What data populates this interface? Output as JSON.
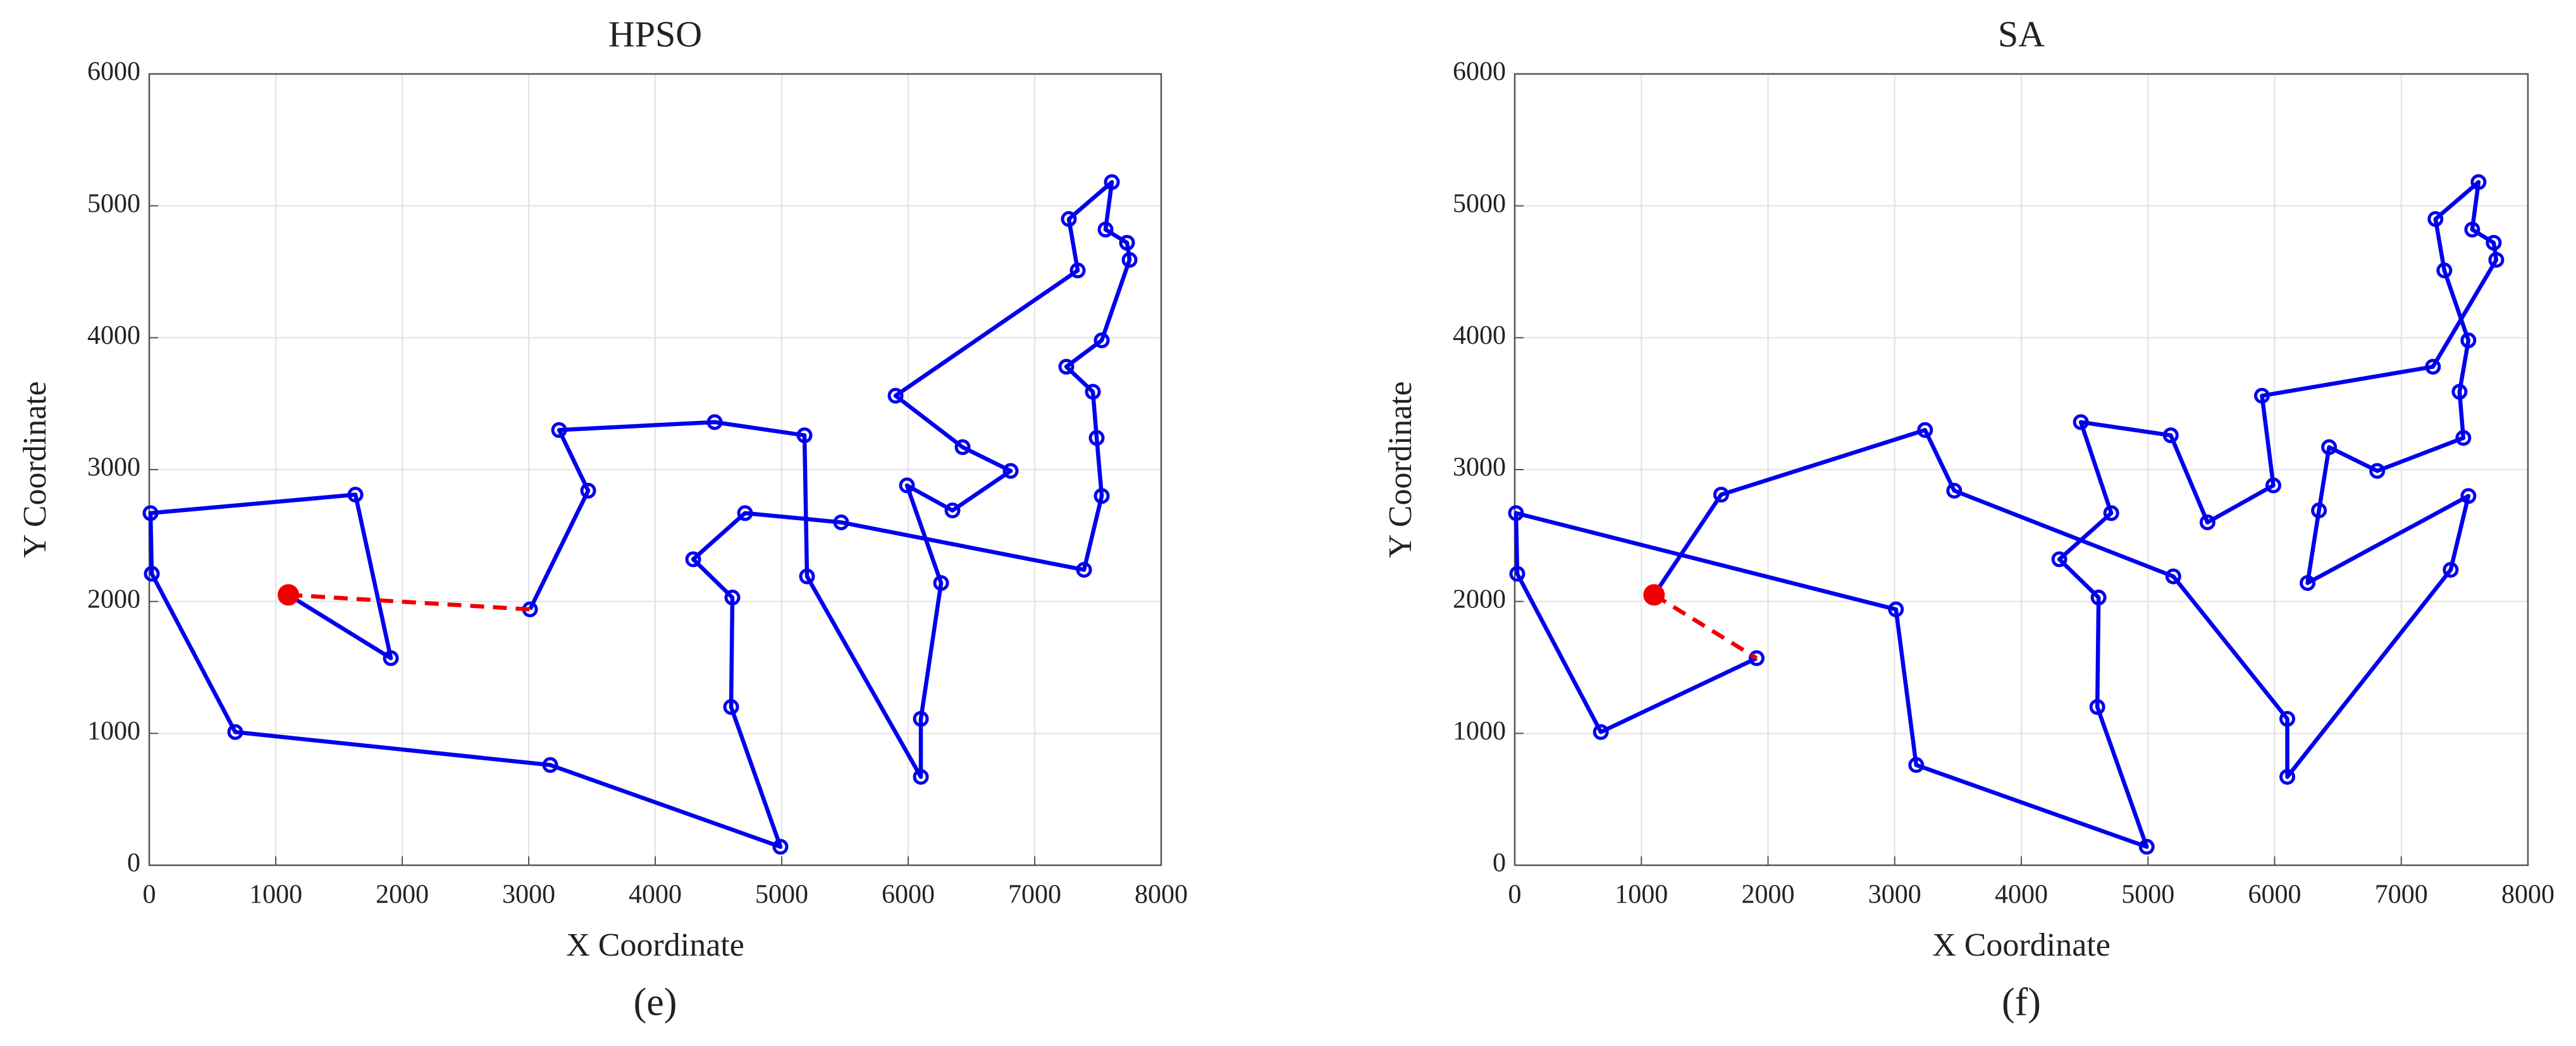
{
  "chart_data": [
    {
      "type": "line",
      "title": "HPSO",
      "xlabel": "X Coordinate",
      "ylabel": "Y Coordinate",
      "caption": "(e)",
      "xlim": [
        0,
        8000
      ],
      "xticks": [
        0,
        1000,
        2000,
        3000,
        4000,
        5000,
        6000,
        7000,
        8000
      ],
      "ylim": [
        0,
        6000
      ],
      "yticks": [
        0,
        1000,
        2000,
        3000,
        4000,
        5000,
        6000
      ],
      "grid": true,
      "series": [
        {
          "color": "#0000ee",
          "line": "solid",
          "marker": "open",
          "x": [
            3010,
            3470,
            3240,
            4470,
            5180,
            5200,
            6100,
            6100,
            6260,
            5990,
            6350,
            6810,
            6430,
            5900,
            7340,
            7270,
            7610,
            7560,
            7730,
            7750,
            7530,
            7250,
            7460,
            7490,
            7530,
            7390,
            5470,
            4710,
            4300,
            4610,
            4600,
            4990,
            3170,
            680,
            20,
            10,
            1630,
            1910,
            1100
          ],
          "values": [
            1940,
            2840,
            3300,
            3360,
            3260,
            2190,
            670,
            1110,
            2140,
            2880,
            2690,
            2990,
            3170,
            3560,
            4510,
            4900,
            5180,
            4820,
            4720,
            4590,
            3980,
            3780,
            3590,
            3240,
            2800,
            2240,
            2600,
            2670,
            2320,
            2030,
            1200,
            140,
            760,
            1010,
            2210,
            2670,
            2810,
            1570,
            2050
          ]
        },
        {
          "color": "#ee0000",
          "line": "dashed",
          "marker": "none",
          "x": [
            1100,
            3010
          ],
          "values": [
            2050,
            1940
          ]
        },
        {
          "color": "#ee0000",
          "line": "none",
          "marker": "filled",
          "x": [
            1100
          ],
          "values": [
            2050
          ]
        }
      ]
    },
    {
      "type": "line",
      "title": "SA",
      "xlabel": "X Coordinate",
      "ylabel": "Y Coordinate",
      "caption": "(f)",
      "xlim": [
        0,
        8000
      ],
      "xticks": [
        0,
        1000,
        2000,
        3000,
        4000,
        5000,
        6000,
        7000,
        8000
      ],
      "ylim": [
        0,
        6000
      ],
      "yticks": [
        0,
        1000,
        2000,
        3000,
        4000,
        5000,
        6000
      ],
      "grid": true,
      "series": [
        {
          "color": "#0000ee",
          "line": "solid",
          "marker": "open",
          "x": [
            1910,
            680,
            20,
            10,
            3010,
            3170,
            4990,
            4600,
            4610,
            4300,
            4710,
            4470,
            5180,
            5470,
            5990,
            5900,
            7250,
            7750,
            7730,
            7560,
            7610,
            7270,
            7340,
            7530,
            7460,
            7490,
            6810,
            6430,
            6350,
            6260,
            7530,
            7390,
            6100,
            6100,
            5200,
            3470,
            3240,
            1630,
            1100
          ],
          "values": [
            1570,
            1010,
            2210,
            2670,
            1940,
            760,
            140,
            1200,
            2030,
            2320,
            2670,
            3360,
            3260,
            2600,
            2880,
            3560,
            3780,
            4590,
            4720,
            4820,
            5180,
            4900,
            4510,
            3980,
            3590,
            3240,
            2990,
            3170,
            2690,
            2140,
            2800,
            2240,
            670,
            1110,
            2190,
            2840,
            3300,
            2810,
            2050
          ]
        },
        {
          "color": "#ee0000",
          "line": "dashed",
          "marker": "none",
          "x": [
            1100,
            1910
          ],
          "values": [
            2050,
            1570
          ]
        },
        {
          "color": "#ee0000",
          "line": "none",
          "marker": "filled",
          "x": [
            1100
          ],
          "values": [
            2050
          ]
        }
      ]
    }
  ]
}
